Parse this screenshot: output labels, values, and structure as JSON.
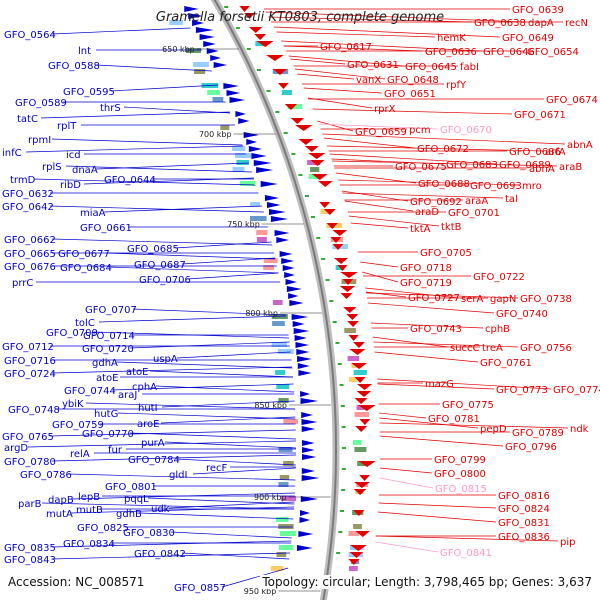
{
  "title": "Gramella forsetii KT0803, complete genome",
  "footer": {
    "accession": "Accession: NC_008571",
    "summary": "Topology: circular; Length: 3,798,465 bp; Genes: 3,637"
  },
  "scale_labels": [
    "650 kbp",
    "700 kbp",
    "750 kbp",
    "800 kbp",
    "850 kbp",
    "900 kbp",
    "950 kbp"
  ],
  "colors": {
    "forward_strand": "#0000cc",
    "reverse_strand": "#e00000",
    "highlight": "#ff99cc",
    "backbone": "#999999"
  },
  "left_labels": [
    "GFO_0564",
    "lnt",
    "GFO_0588",
    "GFO_0595",
    "GFO_0589",
    "thrS",
    "tatC",
    "rplT",
    "rpmI",
    "infC",
    "icd",
    "rplS",
    "dnaA",
    "GFO_0644",
    "trmD",
    "ribD",
    "GFO_0632",
    "GFO_0642",
    "miaA",
    "GFO_0661",
    "GFO_0662",
    "GFO_0685",
    "GFO_0665",
    "GFO_0677",
    "GFO_0687",
    "GFO_0676",
    "GFO_0684",
    "GFO_0706",
    "prrC",
    "GFO_0707",
    "tolC",
    "GFO_0714",
    "GFO_0709",
    "GFO_0720",
    "GFO_0712",
    "gdhA",
    "uspA",
    "GFO_0716",
    "atoE",
    "GFO_0724",
    "atoE",
    "cphA",
    "GFO_0744",
    "araJ",
    "ybiK",
    "hutI",
    "GFO_0748",
    "hutG",
    "aroE",
    "GFO_0759",
    "GFO_0770",
    "GFO_0765",
    "fur",
    "purA",
    "argD",
    "relA",
    "GFO_0784",
    "GFO_0780",
    "recF",
    "GFO_0786",
    "gldI",
    "GFO_0801",
    "parB",
    "dapB",
    "lepB",
    "pqqL",
    "mutA",
    "mutB",
    "gdhB",
    "udk",
    "GFO_0825",
    "GFO_0830",
    "GFO_0835",
    "GFO_0834",
    "GFO_0842",
    "GFO_0843",
    "GFO_0857"
  ],
  "right_labels": [
    "GFO_0639",
    "GFO_0638",
    "dapA",
    "recN",
    "hemK",
    "GFO_0649",
    "GFO_0617",
    "GFO_0636",
    "GFO_0646",
    "GFO_0654",
    "GFO_0631",
    "GFO_0645",
    "fabI",
    "vanX",
    "GFO_0648",
    "rpfY",
    "GFO_0651",
    "rprX",
    "GFO_0674",
    "GFO_0671",
    "GFO_0659",
    "pcm",
    "GFO_0670",
    "GFO_0672",
    "GFO_0686",
    "arfA",
    "abnA",
    "GFO_0675",
    "GFO_0683",
    "GFO_0689",
    "abnA",
    "araB",
    "GFO_0688",
    "GFO_0693",
    "mro",
    "GFO_0692",
    "araA",
    "tal",
    "araD",
    "GFO_0701",
    "tktA",
    "tktB",
    "GFO_0705",
    "GFO_0718",
    "GFO_0719",
    "GFO_0722",
    "GFO_0727",
    "serA",
    "gapN",
    "GFO_0738",
    "GFO_0740",
    "GFO_0743",
    "cphB",
    "succC",
    "treA",
    "GFO_0756",
    "GFO_0761",
    "mazG",
    "GFO_0773",
    "GFO_0774",
    "GFO_0775",
    "GFO_0781",
    "pepD",
    "GFO_0789",
    "ndk",
    "GFO_0796",
    "GFO_0799",
    "GFO_0800",
    "GFO_0815",
    "GFO_0816",
    "GFO_0824",
    "GFO_0831",
    "GFO_0836",
    "pip",
    "GFO_0841"
  ],
  "highlight_labels": [
    "GFO_0670",
    "GFO_0815",
    "GFO_0841"
  ]
}
